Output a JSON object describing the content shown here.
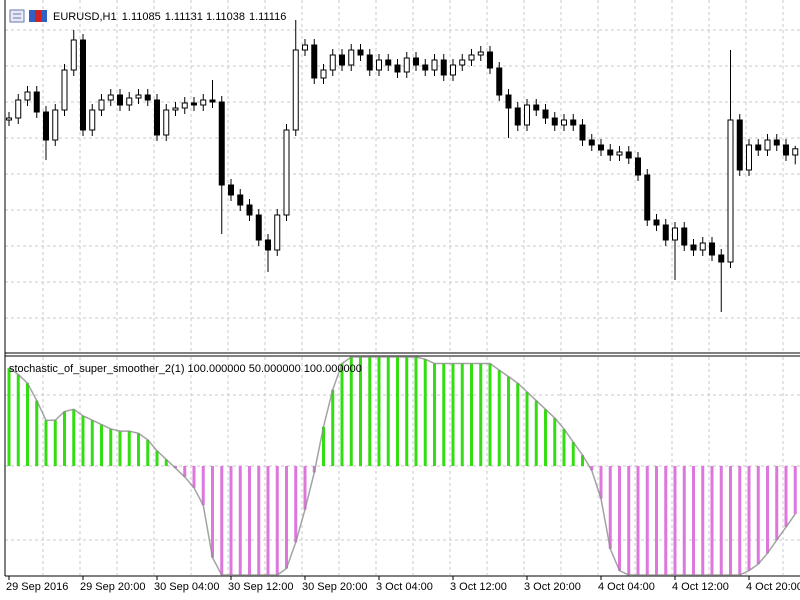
{
  "chart_data": [
    {
      "type": "candlestick",
      "symbol": "EURUSD,H1",
      "categories": [
        "29 Sep 2016",
        null,
        null,
        null,
        null,
        null,
        null,
        null,
        "29 Sep 20:00",
        null,
        null,
        null,
        null,
        null,
        null,
        null,
        "30 Sep 04:00",
        null,
        null,
        null,
        null,
        null,
        null,
        null,
        "30 Sep 12:00",
        null,
        null,
        null,
        null,
        null,
        null,
        null,
        "30 Sep 20:00",
        null,
        null,
        null,
        null,
        null,
        null,
        null,
        "3 Oct 04:00",
        null,
        null,
        null,
        null,
        null,
        null,
        null,
        "3 Oct 12:00",
        null,
        null,
        null,
        null,
        null,
        null,
        null,
        "3 Oct 20:00",
        null,
        null,
        null,
        null,
        null,
        null,
        null,
        "4 Oct 04:00",
        null,
        null,
        null,
        null,
        null,
        null,
        null,
        "4 Oct 12:00",
        null,
        null,
        null,
        null,
        null,
        null,
        null,
        "4 Oct 20:00",
        null,
        null,
        null,
        null,
        null
      ],
      "open": [
        1.1126,
        1.1127,
        1.1136,
        1.114,
        1.113,
        1.1116,
        1.1131,
        1.1151,
        1.1166,
        1.1121,
        1.1131,
        1.1136,
        1.11385,
        1.11335,
        1.1137,
        1.11385,
        1.1136,
        1.11185,
        1.1131,
        1.1132,
        1.11345,
        1.11335,
        1.1136,
        1.1135,
        1.10935,
        1.10885,
        1.10835,
        1.10785,
        1.1066,
        1.1061,
        1.10785,
        1.1121,
        1.1161,
        1.11635,
        1.1147,
        1.1151,
        1.11585,
        1.11535,
        1.1161,
        1.11585,
        1.1151,
        1.1156,
        1.11535,
        1.115,
        1.1157,
        1.11535,
        1.1151,
        1.1156,
        1.11485,
        1.11535,
        1.1156,
        1.11585,
        1.116,
        1.1152,
        1.11385,
        1.1132,
        1.11235,
        1.11335,
        1.1131,
        1.1127,
        1.11235,
        1.1126,
        1.11235,
        1.1116,
        1.11135,
        1.1111,
        1.11085,
        1.111,
        1.1107,
        1.10985,
        1.1076,
        1.10735,
        1.1066,
        1.1072,
        1.10635,
        1.1061,
        1.10645,
        1.10585,
        1.1055,
        1.1126,
        1.1101,
        1.11135,
        1.1111,
        1.1116,
        1.11135,
        1.11085
      ],
      "high": [
        1.113,
        1.1139,
        1.1143,
        1.1143,
        1.1133,
        1.1134,
        1.1154,
        1.1171,
        1.1169,
        1.1134,
        1.1139,
        1.11415,
        1.11415,
        1.114,
        1.11415,
        1.11415,
        1.1139,
        1.1134,
        1.1135,
        1.11375,
        1.11375,
        1.1139,
        1.1146,
        1.1138,
        1.10965,
        1.10915,
        1.10865,
        1.10815,
        1.1069,
        1.10815,
        1.1124,
        1.1176,
        1.11665,
        1.11665,
        1.1154,
        1.11615,
        1.11615,
        1.1164,
        1.1164,
        1.11615,
        1.1159,
        1.1159,
        1.11565,
        1.116,
        1.116,
        1.11565,
        1.1159,
        1.1159,
        1.11565,
        1.1159,
        1.11615,
        1.1163,
        1.1163,
        1.1155,
        1.11415,
        1.1135,
        1.11365,
        1.11365,
        1.1134,
        1.113,
        1.1129,
        1.1129,
        1.11265,
        1.1119,
        1.11165,
        1.1114,
        1.1113,
        1.1113,
        1.111,
        1.11015,
        1.1079,
        1.10765,
        1.1075,
        1.1075,
        1.10665,
        1.10675,
        1.10675,
        1.10615,
        1.1161,
        1.1129,
        1.11165,
        1.11165,
        1.1119,
        1.1119,
        1.11165,
        1.11131
      ],
      "low": [
        1.1123,
        1.1124,
        1.1133,
        1.1127,
        1.1106,
        1.1113,
        1.1128,
        1.1148,
        1.1118,
        1.1118,
        1.1128,
        1.1133,
        1.11305,
        1.11305,
        1.1134,
        1.1133,
        1.11155,
        1.11155,
        1.1128,
        1.1129,
        1.11305,
        1.11305,
        1.1132,
        1.1069,
        1.10855,
        1.10805,
        1.10755,
        1.1063,
        1.105,
        1.1058,
        1.10755,
        1.1118,
        1.1158,
        1.1144,
        1.1144,
        1.1148,
        1.11505,
        1.11505,
        1.11555,
        1.1148,
        1.1148,
        1.11505,
        1.1147,
        1.1147,
        1.11505,
        1.1148,
        1.1148,
        1.11455,
        1.11455,
        1.11505,
        1.1153,
        1.11555,
        1.1149,
        1.11355,
        1.1117,
        1.11205,
        1.11205,
        1.1128,
        1.1124,
        1.11205,
        1.11205,
        1.11205,
        1.1113,
        1.11105,
        1.1108,
        1.11055,
        1.11055,
        1.1104,
        1.10955,
        1.1073,
        1.10705,
        1.1063,
        1.1046,
        1.10605,
        1.1058,
        1.1058,
        1.10555,
        1.103,
        1.1052,
        1.1098,
        1.1098,
        1.1108,
        1.1108,
        1.11105,
        1.11055,
        1.11038
      ],
      "close": [
        1.1127,
        1.1136,
        1.114,
        1.113,
        1.1116,
        1.1131,
        1.1151,
        1.1166,
        1.1121,
        1.1131,
        1.1136,
        1.11385,
        1.11335,
        1.1137,
        1.11385,
        1.1136,
        1.11185,
        1.1131,
        1.1132,
        1.11345,
        1.11335,
        1.1136,
        1.1135,
        1.10935,
        1.10885,
        1.10835,
        1.10785,
        1.1066,
        1.1061,
        1.10785,
        1.1121,
        1.1161,
        1.11635,
        1.1147,
        1.1151,
        1.11585,
        1.11535,
        1.1161,
        1.11585,
        1.1151,
        1.1156,
        1.11535,
        1.115,
        1.1157,
        1.11535,
        1.1151,
        1.1156,
        1.11485,
        1.11535,
        1.1156,
        1.11585,
        1.116,
        1.1152,
        1.11385,
        1.1132,
        1.11235,
        1.11335,
        1.1131,
        1.1127,
        1.11235,
        1.1126,
        1.11235,
        1.1116,
        1.11135,
        1.1111,
        1.11085,
        1.111,
        1.1107,
        1.10985,
        1.1076,
        1.10735,
        1.1066,
        1.1072,
        1.10635,
        1.1061,
        1.10645,
        1.10585,
        1.1055,
        1.1126,
        1.1101,
        1.11135,
        1.1111,
        1.1116,
        1.11135,
        1.11085,
        1.11116
      ],
      "ylim": [
        1.101,
        1.1186
      ],
      "up_color": "#ffffff",
      "down_color": "#000000",
      "grid": true
    },
    {
      "type": "histogram",
      "title": "stochastic_of_super_smoother_2(1) 100.000000 50.000000 100.000000",
      "values": [
        95,
        92,
        88,
        80,
        71,
        71,
        75,
        76,
        73,
        71,
        69,
        67,
        66,
        66,
        65,
        62,
        57,
        53,
        49,
        45,
        40,
        32,
        8,
        0,
        0,
        0,
        0,
        0,
        0,
        0,
        3,
        15,
        30,
        47,
        68,
        85,
        97,
        100,
        100,
        100,
        100,
        100,
        100,
        100,
        100,
        99,
        97,
        97,
        97,
        97,
        97,
        97,
        97,
        94,
        91,
        88,
        84,
        80,
        76,
        72,
        67,
        61,
        55,
        48,
        35,
        12,
        2,
        0,
        0,
        0,
        0,
        0,
        0,
        0,
        0,
        0,
        0,
        0,
        0,
        0,
        2,
        5,
        10,
        16,
        22,
        28
      ],
      "ylim": [
        0,
        100
      ],
      "base": 50,
      "above_color": "#33dd11",
      "below_color": "#dd77dd",
      "grid": true
    }
  ]
}
